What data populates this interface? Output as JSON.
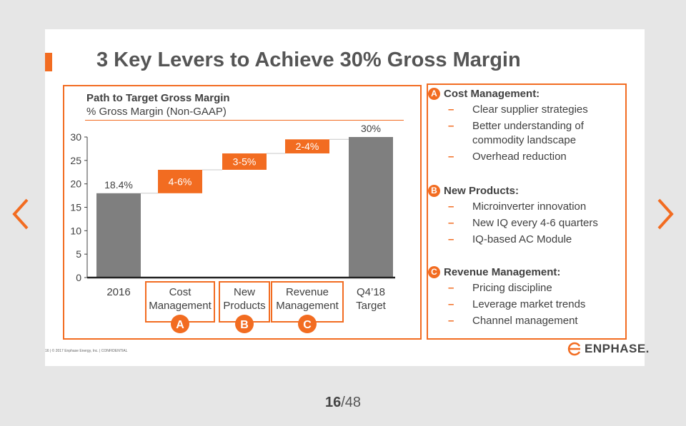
{
  "viewer": {
    "current_page": "16",
    "separator": "/",
    "total_pages": "48"
  },
  "slide": {
    "title": "3 Key Levers to Achieve 30% Gross Margin",
    "footer": "16   |  © 2017 Enphase Energy, Inc. | CONFIDENTIAL",
    "brand": "ENPHASE.",
    "accent_color": "#f26c21",
    "bar_color": "#7f7f7f"
  },
  "chart_data": {
    "type": "bar",
    "subtype": "waterfall",
    "title": "Path to Target Gross Margin",
    "subtitle": "% Gross Margin (Non-GAAP)",
    "ylim": [
      0,
      30
    ],
    "yticks": [
      "0",
      "5",
      "10",
      "15",
      "20",
      "25",
      "30"
    ],
    "categories": [
      "2016",
      "Cost Management",
      "New Products",
      "Revenue Management",
      "Q4'18 Target"
    ],
    "category_lines": [
      [
        "2016"
      ],
      [
        "Cost",
        "Management"
      ],
      [
        "New",
        "Products"
      ],
      [
        "Revenue",
        "Management"
      ],
      [
        "Q4’18",
        "Target"
      ]
    ],
    "bars": [
      {
        "category": "2016",
        "kind": "total",
        "start": 0,
        "end": 18,
        "label": "18.4%"
      },
      {
        "category": "Cost Management",
        "kind": "step",
        "start": 18,
        "end": 23,
        "label": "4-6%",
        "lever": "A"
      },
      {
        "category": "New Products",
        "kind": "step",
        "start": 23,
        "end": 26.5,
        "label": "3-5%",
        "lever": "B"
      },
      {
        "category": "Revenue Management",
        "kind": "step",
        "start": 26.5,
        "end": 29.5,
        "label": "2-4%",
        "lever": "C"
      },
      {
        "category": "Q4'18 Target",
        "kind": "total",
        "start": 0,
        "end": 30,
        "label": "30%"
      }
    ]
  },
  "levers": [
    {
      "badge": "A",
      "title": "Cost Management:",
      "items": [
        "Clear supplier strategies",
        "Better understanding of commodity landscape",
        "Overhead reduction"
      ]
    },
    {
      "badge": "B",
      "title": "New Products:",
      "items": [
        "Microinverter innovation",
        "New IQ every 4-6 quarters",
        "IQ-based AC Module"
      ]
    },
    {
      "badge": "C",
      "title": "Revenue Management:",
      "items": [
        "Pricing discipline",
        "Leverage market trends",
        "Channel management"
      ]
    }
  ]
}
